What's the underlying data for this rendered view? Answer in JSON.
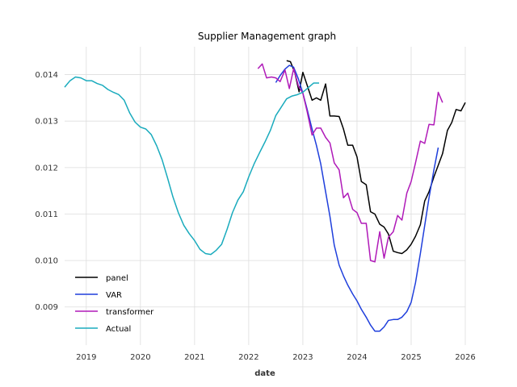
{
  "chart_data": {
    "type": "line",
    "title": "Supplier Management graph",
    "xlabel": "date",
    "ylabel": "",
    "x_ticks": [
      "2019",
      "2020",
      "2021",
      "2022",
      "2023",
      "2024",
      "2025",
      "2026"
    ],
    "y_ticks": [
      "0.009",
      "0.010",
      "0.011",
      "0.012",
      "0.013",
      "0.014"
    ],
    "xlim": [
      2018.6,
      2026.0
    ],
    "ylim": [
      0.00818,
      0.0146
    ],
    "grid": true,
    "legend_placement": "lower-left",
    "series": [
      {
        "name": "panel",
        "color": "#000000",
        "points": [
          [
            2022.7,
            0.0143
          ],
          [
            2022.77,
            0.01428
          ],
          [
            2022.85,
            0.01405
          ],
          [
            2022.93,
            0.01363
          ],
          [
            2023.0,
            0.01405
          ],
          [
            2023.08,
            0.01377
          ],
          [
            2023.17,
            0.01345
          ],
          [
            2023.25,
            0.0135
          ],
          [
            2023.33,
            0.01345
          ],
          [
            2023.42,
            0.0138
          ],
          [
            2023.5,
            0.01311
          ],
          [
            2023.58,
            0.01311
          ],
          [
            2023.67,
            0.0131
          ],
          [
            2023.75,
            0.01283
          ],
          [
            2023.83,
            0.01248
          ],
          [
            2023.92,
            0.01248
          ],
          [
            2024.0,
            0.01223
          ],
          [
            2024.08,
            0.0117
          ],
          [
            2024.17,
            0.01163
          ],
          [
            2024.25,
            0.01105
          ],
          [
            2024.33,
            0.011
          ],
          [
            2024.42,
            0.01078
          ],
          [
            2024.5,
            0.01072
          ],
          [
            2024.58,
            0.01057
          ],
          [
            2024.67,
            0.0102
          ],
          [
            2024.75,
            0.01017
          ],
          [
            2024.83,
            0.01015
          ],
          [
            2024.92,
            0.01023
          ],
          [
            2025.0,
            0.01035
          ],
          [
            2025.08,
            0.01052
          ],
          [
            2025.17,
            0.01077
          ],
          [
            2025.25,
            0.01128
          ],
          [
            2025.33,
            0.01148
          ],
          [
            2025.42,
            0.0118
          ],
          [
            2025.5,
            0.01205
          ],
          [
            2025.58,
            0.0123
          ],
          [
            2025.67,
            0.0128
          ],
          [
            2025.75,
            0.01297
          ],
          [
            2025.83,
            0.01325
          ],
          [
            2025.92,
            0.01322
          ],
          [
            2026.0,
            0.0134
          ]
        ]
      },
      {
        "name": "VAR",
        "color": "#1f3fdc",
        "points": [
          [
            2022.5,
            0.01383
          ],
          [
            2022.58,
            0.01398
          ],
          [
            2022.67,
            0.01412
          ],
          [
            2022.75,
            0.0142
          ],
          [
            2022.83,
            0.01416
          ],
          [
            2022.92,
            0.0139
          ],
          [
            2023.0,
            0.0136
          ],
          [
            2023.08,
            0.01325
          ],
          [
            2023.17,
            0.01283
          ],
          [
            2023.25,
            0.01248
          ],
          [
            2023.33,
            0.01208
          ],
          [
            2023.42,
            0.01148
          ],
          [
            2023.5,
            0.01095
          ],
          [
            2023.58,
            0.01033
          ],
          [
            2023.67,
            0.0099
          ],
          [
            2023.75,
            0.00967
          ],
          [
            2023.83,
            0.00947
          ],
          [
            2023.92,
            0.00928
          ],
          [
            2024.0,
            0.00913
          ],
          [
            2024.08,
            0.00895
          ],
          [
            2024.17,
            0.00878
          ],
          [
            2024.25,
            0.00861
          ],
          [
            2024.33,
            0.00848
          ],
          [
            2024.42,
            0.00848
          ],
          [
            2024.5,
            0.00857
          ],
          [
            2024.58,
            0.00871
          ],
          [
            2024.67,
            0.00873
          ],
          [
            2024.75,
            0.00873
          ],
          [
            2024.83,
            0.00878
          ],
          [
            2024.92,
            0.0089
          ],
          [
            2025.0,
            0.0091
          ],
          [
            2025.08,
            0.00952
          ],
          [
            2025.17,
            0.01015
          ],
          [
            2025.25,
            0.01075
          ],
          [
            2025.33,
            0.01135
          ],
          [
            2025.42,
            0.01195
          ],
          [
            2025.5,
            0.01243
          ]
        ]
      },
      {
        "name": "transformer",
        "color": "#b01ab8",
        "points": [
          [
            2022.17,
            0.01413
          ],
          [
            2022.25,
            0.01423
          ],
          [
            2022.33,
            0.01393
          ],
          [
            2022.42,
            0.01395
          ],
          [
            2022.5,
            0.01393
          ],
          [
            2022.58,
            0.01385
          ],
          [
            2022.67,
            0.0141
          ],
          [
            2022.75,
            0.0137
          ],
          [
            2022.83,
            0.01413
          ],
          [
            2022.92,
            0.01375
          ],
          [
            2023.0,
            0.0136
          ],
          [
            2023.08,
            0.0132
          ],
          [
            2023.17,
            0.0127
          ],
          [
            2023.25,
            0.01285
          ],
          [
            2023.33,
            0.01285
          ],
          [
            2023.42,
            0.01265
          ],
          [
            2023.5,
            0.01253
          ],
          [
            2023.58,
            0.0121
          ],
          [
            2023.67,
            0.01195
          ],
          [
            2023.75,
            0.01135
          ],
          [
            2023.83,
            0.01145
          ],
          [
            2023.92,
            0.0111
          ],
          [
            2024.0,
            0.01103
          ],
          [
            2024.08,
            0.0108
          ],
          [
            2024.17,
            0.0108
          ],
          [
            2024.25,
            0.01
          ],
          [
            2024.33,
            0.00997
          ],
          [
            2024.42,
            0.01062
          ],
          [
            2024.5,
            0.01005
          ],
          [
            2024.58,
            0.0105
          ],
          [
            2024.67,
            0.01062
          ],
          [
            2024.75,
            0.01097
          ],
          [
            2024.83,
            0.01087
          ],
          [
            2024.92,
            0.01145
          ],
          [
            2025.0,
            0.0117
          ],
          [
            2025.08,
            0.0121
          ],
          [
            2025.17,
            0.01257
          ],
          [
            2025.25,
            0.01252
          ],
          [
            2025.33,
            0.01293
          ],
          [
            2025.42,
            0.01292
          ],
          [
            2025.5,
            0.01362
          ],
          [
            2025.58,
            0.0134
          ]
        ]
      },
      {
        "name": "Actual",
        "color": "#1aabbd",
        "points": [
          [
            2018.6,
            0.01373
          ],
          [
            2018.7,
            0.01387
          ],
          [
            2018.8,
            0.01395
          ],
          [
            2018.9,
            0.01393
          ],
          [
            2019.0,
            0.01387
          ],
          [
            2019.1,
            0.01387
          ],
          [
            2019.2,
            0.01381
          ],
          [
            2019.3,
            0.01377
          ],
          [
            2019.4,
            0.01368
          ],
          [
            2019.5,
            0.01362
          ],
          [
            2019.6,
            0.01357
          ],
          [
            2019.7,
            0.01345
          ],
          [
            2019.8,
            0.01318
          ],
          [
            2019.9,
            0.01298
          ],
          [
            2020.0,
            0.01287
          ],
          [
            2020.1,
            0.01283
          ],
          [
            2020.2,
            0.01271
          ],
          [
            2020.3,
            0.01247
          ],
          [
            2020.4,
            0.01217
          ],
          [
            2020.5,
            0.01178
          ],
          [
            2020.6,
            0.01137
          ],
          [
            2020.7,
            0.01103
          ],
          [
            2020.8,
            0.01076
          ],
          [
            2020.9,
            0.01058
          ],
          [
            2021.0,
            0.01043
          ],
          [
            2021.1,
            0.01024
          ],
          [
            2021.2,
            0.01015
          ],
          [
            2021.3,
            0.01013
          ],
          [
            2021.4,
            0.01022
          ],
          [
            2021.5,
            0.01035
          ],
          [
            2021.6,
            0.01067
          ],
          [
            2021.7,
            0.01103
          ],
          [
            2021.8,
            0.0113
          ],
          [
            2021.9,
            0.01148
          ],
          [
            2022.0,
            0.0118
          ],
          [
            2022.1,
            0.01208
          ],
          [
            2022.2,
            0.01232
          ],
          [
            2022.3,
            0.01255
          ],
          [
            2022.4,
            0.0128
          ],
          [
            2022.5,
            0.01312
          ],
          [
            2022.6,
            0.0133
          ],
          [
            2022.7,
            0.01348
          ],
          [
            2022.8,
            0.01354
          ],
          [
            2022.9,
            0.01357
          ],
          [
            2023.0,
            0.01362
          ],
          [
            2023.1,
            0.01372
          ],
          [
            2023.2,
            0.01382
          ],
          [
            2023.3,
            0.01382
          ]
        ]
      }
    ]
  }
}
